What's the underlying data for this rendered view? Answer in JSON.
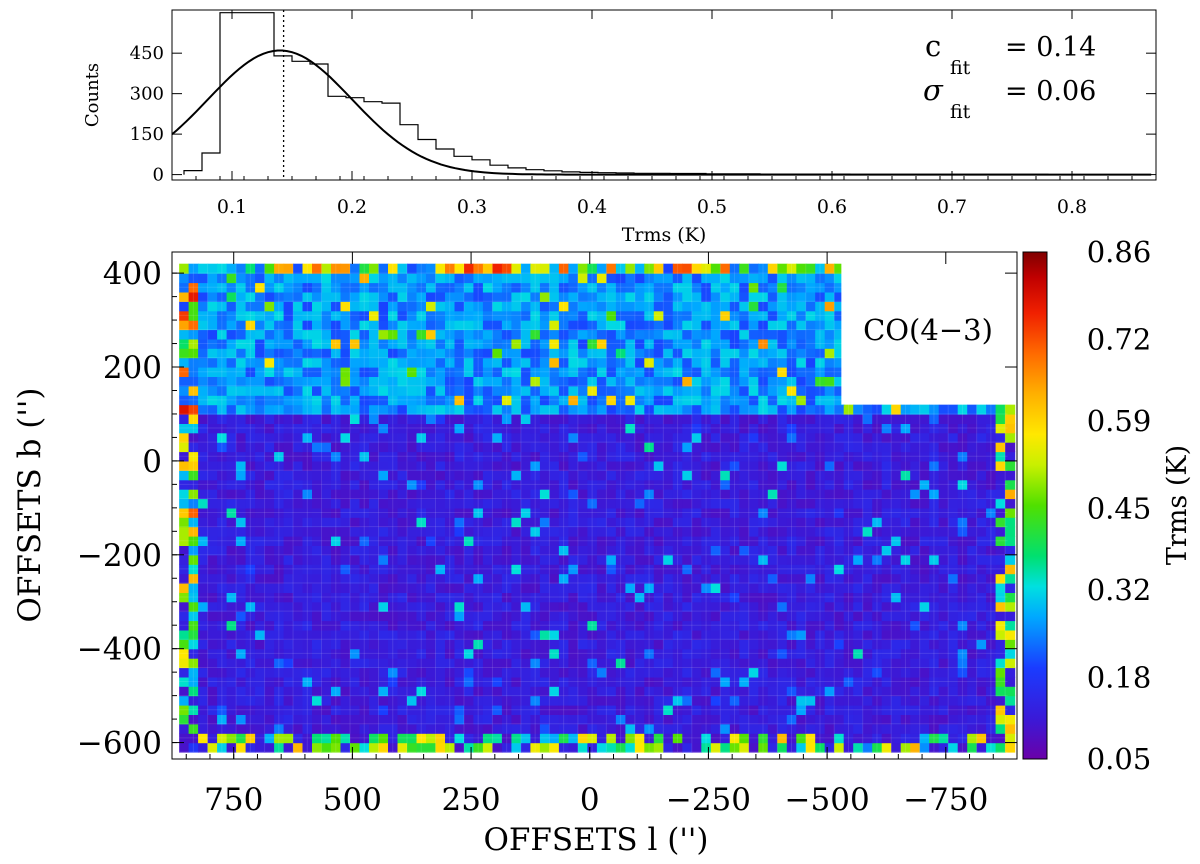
{
  "chart_data": [
    {
      "type": "histogram",
      "xlabel": "Trms (K)",
      "ylabel": "Counts",
      "xlim": [
        0.05,
        0.87
      ],
      "ylim": [
        -20,
        610
      ],
      "x_ticks": [
        "0.1",
        "0.2",
        "0.3",
        "0.4",
        "0.5",
        "0.6",
        "0.7",
        "0.8"
      ],
      "y_ticks": [
        "0",
        "150",
        "300",
        "450"
      ],
      "bin_width": 0.015,
      "bin_start": 0.06,
      "counts": [
        15,
        80,
        600,
        600,
        600,
        440,
        420,
        410,
        290,
        285,
        270,
        265,
        185,
        130,
        95,
        68,
        55,
        35,
        25,
        18,
        14,
        10,
        8,
        7,
        6,
        5,
        5,
        4,
        4,
        3,
        3,
        3,
        2,
        2,
        2,
        2,
        2,
        1,
        1,
        1,
        1,
        1,
        1,
        1,
        1,
        1,
        1,
        1,
        0,
        0,
        0,
        0
      ],
      "fit": {
        "type": "gaussian",
        "center": 0.14,
        "sigma": 0.06,
        "peak": 460,
        "marker_x": 0.143
      },
      "annotations": [
        {
          "symbol": "c",
          "subscript": "fit",
          "text": "= 0.14"
        },
        {
          "symbol": "σ",
          "subscript": "fit",
          "text": "= 0.06"
        }
      ]
    },
    {
      "type": "heatmap",
      "xlabel": "OFFSETS l ('')",
      "ylabel": "OFFSETS b ('')",
      "xlim": [
        880,
        -900
      ],
      "ylim": [
        -635,
        445
      ],
      "x_ticks": [
        "750",
        "500",
        "250",
        "0",
        "−250",
        "−500",
        "−750"
      ],
      "x_tick_values": [
        750,
        500,
        250,
        0,
        -250,
        -500,
        -750
      ],
      "y_ticks": [
        "400",
        "200",
        "0",
        "−200",
        "−400",
        "−600"
      ],
      "y_tick_values": [
        400,
        200,
        0,
        -200,
        -400,
        -600
      ],
      "map_region": {
        "l_range": [
          865,
          -880
        ],
        "b_range": [
          -620,
          420
        ],
        "upper_strip_b": [
          100,
          420
        ],
        "upper_strip_l_range": [
          865,
          -530
        ],
        "notch_l_range": [
          -530,
          -880
        ],
        "notch_b_top": 120
      },
      "label": "CO(4−3)",
      "colorbar": {
        "label": "Trms (K)",
        "range": [
          0.05,
          0.86
        ],
        "ticks": [
          "0.86",
          "0.72",
          "0.59",
          "0.45",
          "0.32",
          "0.18",
          "0.05"
        ],
        "tick_values": [
          0.86,
          0.72,
          0.59,
          0.45,
          0.32,
          0.18,
          0.05
        ]
      },
      "typical_values": {
        "lower_region_mean": 0.12,
        "upper_region_mean": 0.26,
        "edge_max": 0.86
      }
    }
  ]
}
